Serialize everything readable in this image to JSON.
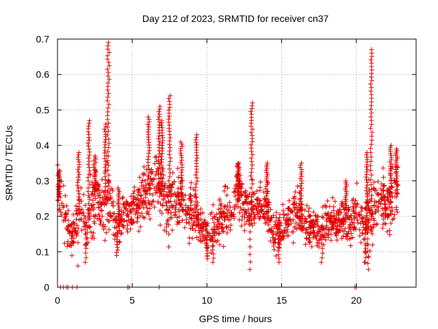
{
  "chart_data": {
    "type": "scatter",
    "title": "Day 212 of 2023, SRMTID for receiver cn37",
    "xlabel": "GPS time / hours",
    "ylabel": "SRMTID / TECUs",
    "xlim": [
      0,
      24
    ],
    "ylim": [
      0,
      0.7
    ],
    "x_ticks": [
      0,
      5,
      10,
      15,
      20
    ],
    "x_tick_labels": [
      "0",
      "5",
      "10",
      "15",
      "20"
    ],
    "y_ticks": [
      0,
      0.1,
      0.2,
      0.3,
      0.4,
      0.5,
      0.6,
      0.7
    ],
    "y_tick_labels": [
      "0",
      "0.1",
      "0.2",
      "0.3",
      "0.4",
      "0.5",
      "0.6",
      "0.7"
    ],
    "grid": true,
    "marker": "+",
    "series_color": "#e00000",
    "x_range_of_data": [
      0,
      22.8
    ],
    "baseline_points": [
      [
        0.2,
        0
      ],
      [
        0.4,
        0
      ],
      [
        0.6,
        0
      ],
      [
        0.7,
        0
      ],
      [
        1.0,
        0
      ],
      [
        1.3,
        0
      ],
      [
        4.7,
        0
      ],
      [
        4.8,
        0
      ],
      [
        6.8,
        0
      ],
      [
        19.9,
        0
      ],
      [
        20.0,
        0
      ]
    ],
    "series_shape": [
      [
        0.0,
        0.27,
        0.06
      ],
      [
        0.5,
        0.2,
        0.05
      ],
      [
        1.0,
        0.15,
        0.04
      ],
      [
        1.5,
        0.2,
        0.06
      ],
      [
        2.0,
        0.17,
        0.07
      ],
      [
        2.5,
        0.27,
        0.06
      ],
      [
        3.0,
        0.22,
        0.06
      ],
      [
        3.5,
        0.25,
        0.08
      ],
      [
        4.0,
        0.15,
        0.04
      ],
      [
        4.5,
        0.2,
        0.05
      ],
      [
        5.0,
        0.21,
        0.04
      ],
      [
        5.5,
        0.24,
        0.05
      ],
      [
        6.0,
        0.27,
        0.05
      ],
      [
        6.5,
        0.3,
        0.06
      ],
      [
        7.0,
        0.26,
        0.06
      ],
      [
        7.5,
        0.24,
        0.06
      ],
      [
        8.0,
        0.25,
        0.05
      ],
      [
        8.5,
        0.22,
        0.05
      ],
      [
        9.0,
        0.22,
        0.05
      ],
      [
        9.5,
        0.19,
        0.05
      ],
      [
        10.0,
        0.14,
        0.04
      ],
      [
        10.5,
        0.17,
        0.04
      ],
      [
        11.0,
        0.2,
        0.05
      ],
      [
        11.5,
        0.2,
        0.05
      ],
      [
        12.0,
        0.28,
        0.05
      ],
      [
        12.5,
        0.22,
        0.05
      ],
      [
        13.0,
        0.22,
        0.05
      ],
      [
        13.5,
        0.23,
        0.04
      ],
      [
        14.0,
        0.23,
        0.04
      ],
      [
        14.5,
        0.15,
        0.04
      ],
      [
        15.0,
        0.16,
        0.04
      ],
      [
        15.5,
        0.19,
        0.04
      ],
      [
        16.0,
        0.21,
        0.04
      ],
      [
        16.5,
        0.18,
        0.04
      ],
      [
        17.0,
        0.17,
        0.04
      ],
      [
        17.5,
        0.17,
        0.04
      ],
      [
        18.0,
        0.18,
        0.04
      ],
      [
        18.5,
        0.18,
        0.04
      ],
      [
        19.0,
        0.19,
        0.04
      ],
      [
        19.5,
        0.18,
        0.04
      ],
      [
        20.0,
        0.2,
        0.05
      ],
      [
        20.5,
        0.17,
        0.06
      ],
      [
        21.0,
        0.2,
        0.06
      ],
      [
        21.5,
        0.25,
        0.05
      ],
      [
        22.0,
        0.23,
        0.05
      ],
      [
        22.5,
        0.27,
        0.06
      ],
      [
        22.8,
        0.3,
        0.05
      ]
    ],
    "peaks": [
      {
        "x": 0.1,
        "y": 0.33
      },
      {
        "x": 1.4,
        "y": 0.38
      },
      {
        "x": 2.1,
        "y": 0.47
      },
      {
        "x": 2.5,
        "y": 0.37
      },
      {
        "x": 3.2,
        "y": 0.46
      },
      {
        "x": 3.4,
        "y": 0.69
      },
      {
        "x": 4.1,
        "y": 0.28
      },
      {
        "x": 6.1,
        "y": 0.48
      },
      {
        "x": 6.8,
        "y": 0.51
      },
      {
        "x": 7.0,
        "y": 0.47
      },
      {
        "x": 7.5,
        "y": 0.54
      },
      {
        "x": 8.3,
        "y": 0.41
      },
      {
        "x": 9.3,
        "y": 0.43
      },
      {
        "x": 12.1,
        "y": 0.35
      },
      {
        "x": 13.0,
        "y": 0.52
      },
      {
        "x": 14.0,
        "y": 0.35
      },
      {
        "x": 16.3,
        "y": 0.35
      },
      {
        "x": 19.3,
        "y": 0.3
      },
      {
        "x": 20.7,
        "y": 0.38
      },
      {
        "x": 21.0,
        "y": 0.67
      },
      {
        "x": 22.3,
        "y": 0.4
      },
      {
        "x": 22.7,
        "y": 0.39
      }
    ],
    "dips": [
      {
        "x": 1.9,
        "y": 0.07
      },
      {
        "x": 4.0,
        "y": 0.09
      },
      {
        "x": 10.0,
        "y": 0.08
      },
      {
        "x": 10.4,
        "y": 0.07
      },
      {
        "x": 12.9,
        "y": 0.05
      },
      {
        "x": 14.8,
        "y": 0.07
      },
      {
        "x": 17.7,
        "y": 0.07
      },
      {
        "x": 20.6,
        "y": 0.07
      },
      {
        "x": 20.8,
        "y": 0.05
      }
    ]
  }
}
